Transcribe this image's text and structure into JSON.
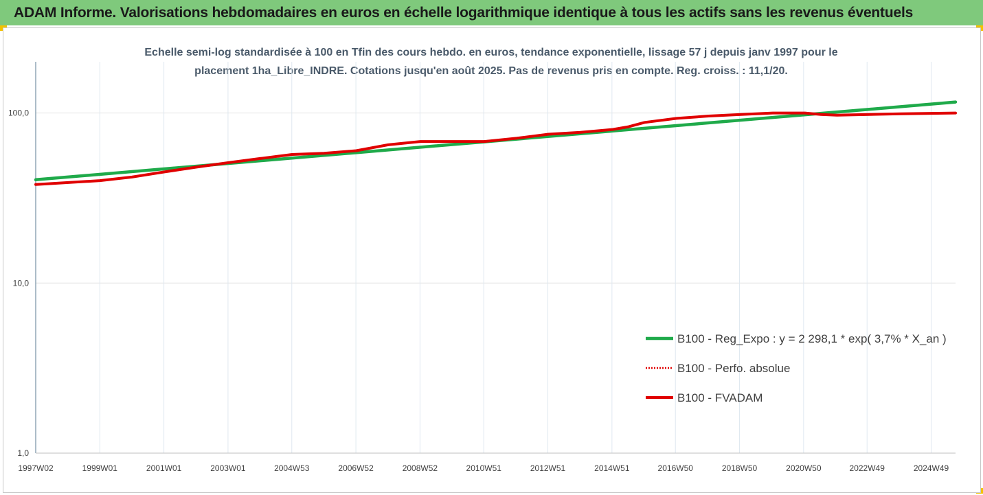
{
  "header": {
    "title": "ADAM Informe. Valorisations hebdomadaires en euros en échelle logarithmique identique à tous les actifs sans les revenus éventuels"
  },
  "colors": {
    "header_bg": "#7fc97c",
    "accent_corner": "#f2c200",
    "series_reg": "#1faa4a",
    "series_perf": "#e00000",
    "series_fvadam": "#e00000"
  },
  "chart_data": {
    "type": "line",
    "title": "Echelle semi-log standardisée à 100 en Tfin des cours hebdo. en euros, tendance exponentielle, lissage 57 j depuis janv 1997 pour le placement 1ha_Libre_INDRE. Cotations jusqu'en août 2025. Pas de revenus pris en compte. Reg. croiss. : 11,1/20.",
    "title_line1": "Echelle semi-log standardisée à 100 en Tfin des cours hebdo. en euros, tendance exponentielle, lissage 57 j depuis janv 1997 pour le",
    "title_line2": "placement 1ha_Libre_INDRE. Cotations jusqu'en août 2025. Pas de revenus pris en compte. Reg. croiss. : 11,1/20.",
    "y_scale": "log",
    "ylim": [
      1,
      200
    ],
    "y_ticks": [
      1,
      10,
      100
    ],
    "y_tick_labels": [
      "1,0",
      "10,0",
      "100,0"
    ],
    "xlim": [
      1997.0,
      2025.7
    ],
    "x_ticks": [
      1997.0,
      1999.0,
      2001.0,
      2003.0,
      2004.99,
      2006.99,
      2008.99,
      2010.98,
      2012.98,
      2014.98,
      2016.96,
      2018.96,
      2020.96,
      2022.94,
      2024.94
    ],
    "x_tick_labels": [
      "1997W02",
      "1999W01",
      "2001W01",
      "2003W01",
      "2004W53",
      "2006W52",
      "2008W52",
      "2010W51",
      "2012W51",
      "2014W51",
      "2016W50",
      "2018W50",
      "2020W50",
      "2022W49",
      "2024W49"
    ],
    "grid": "vertical",
    "legend_position": "bottom-right",
    "series": [
      {
        "name": "B100 - Reg_Expo : y = 2 298,1 * exp( 3,7% *  X_an )",
        "style": "solid-green",
        "x": [
          1997.0,
          2025.7
        ],
        "values": [
          40.5,
          116
        ]
      },
      {
        "name": "B100 - Perfo. absolue",
        "style": "dotted-red",
        "x": [
          1997.0,
          1999.0,
          2000.0,
          2001.0,
          2002.0,
          2003.0,
          2004.0,
          2005.0,
          2006.0,
          2007.0,
          2008.0,
          2009.0,
          2010.0,
          2011.0,
          2012.0,
          2013.0,
          2014.0,
          2015.0,
          2015.5,
          2016.0,
          2017.0,
          2018.0,
          2019.0,
          2020.0,
          2021.0,
          2021.5,
          2022.0,
          2023.0,
          2024.0,
          2025.7
        ],
        "values": [
          38,
          40,
          42,
          45,
          48,
          51,
          54,
          57,
          58,
          60,
          65,
          68,
          68,
          68,
          71,
          75,
          77,
          80,
          83,
          88,
          93,
          96,
          98,
          100,
          100,
          98,
          97,
          98,
          99,
          100
        ]
      },
      {
        "name": "B100 - FVADAM",
        "style": "solid-red",
        "x": [
          1997.0,
          1999.0,
          2000.0,
          2001.0,
          2002.0,
          2003.0,
          2004.0,
          2005.0,
          2006.0,
          2007.0,
          2008.0,
          2009.0,
          2010.0,
          2011.0,
          2012.0,
          2013.0,
          2014.0,
          2015.0,
          2015.5,
          2016.0,
          2017.0,
          2018.0,
          2019.0,
          2020.0,
          2021.0,
          2021.5,
          2022.0,
          2023.0,
          2024.0,
          2025.7
        ],
        "values": [
          38,
          40,
          42,
          45,
          48,
          51,
          54,
          57,
          58,
          60,
          65,
          68,
          68,
          68,
          71,
          75,
          77,
          80,
          83,
          88,
          93,
          96,
          98,
          100,
          100,
          98,
          97,
          98,
          99,
          100
        ]
      }
    ]
  }
}
